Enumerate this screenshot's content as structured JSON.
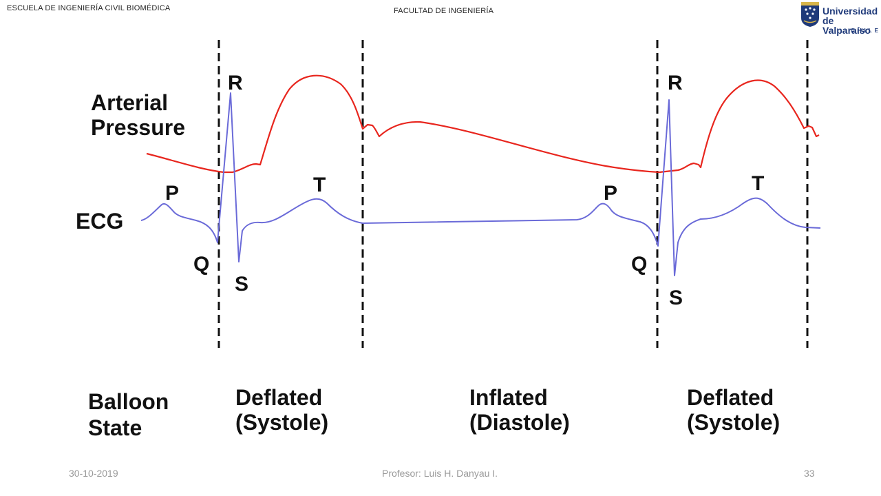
{
  "header": {
    "school": "ESCUELA DE INGENIERÍA CIVIL BIOMÉDICA",
    "faculty": "FACULTAD DE INGENIERÍA"
  },
  "logo": {
    "line1": "Universidad",
    "line2": "de Valparaíso",
    "line3": "CHILE",
    "colors": {
      "navy": "#1f3a7a",
      "gold": "#d9b64a"
    }
  },
  "diagram": {
    "labels": {
      "arterial_pressure_1": "Arterial",
      "arterial_pressure_2": "Pressure",
      "ecg": "ECG",
      "balloon_state_1": "Balloon",
      "balloon_state_2": "State"
    },
    "wave_labels_cycle1": {
      "p": "P",
      "q": "Q",
      "r": "R",
      "s": "S",
      "t": "T"
    },
    "wave_labels_cycle2": {
      "p": "P",
      "q": "Q",
      "r": "R",
      "s": "S",
      "t": "T"
    },
    "states": [
      {
        "line1": "Deflated",
        "line2": "(Systole)"
      },
      {
        "line1": "Inflated",
        "line2": "(Diastole)"
      },
      {
        "line1": "Deflated",
        "line2": "(Systole)"
      }
    ],
    "colors": {
      "pressure": "#e8261e",
      "ecg": "#6a6ad8",
      "divider": "#111111"
    }
  },
  "footer": {
    "date": "30-10-2019",
    "professor": "Profesor: Luis H. Danyau I.",
    "page": "33"
  }
}
